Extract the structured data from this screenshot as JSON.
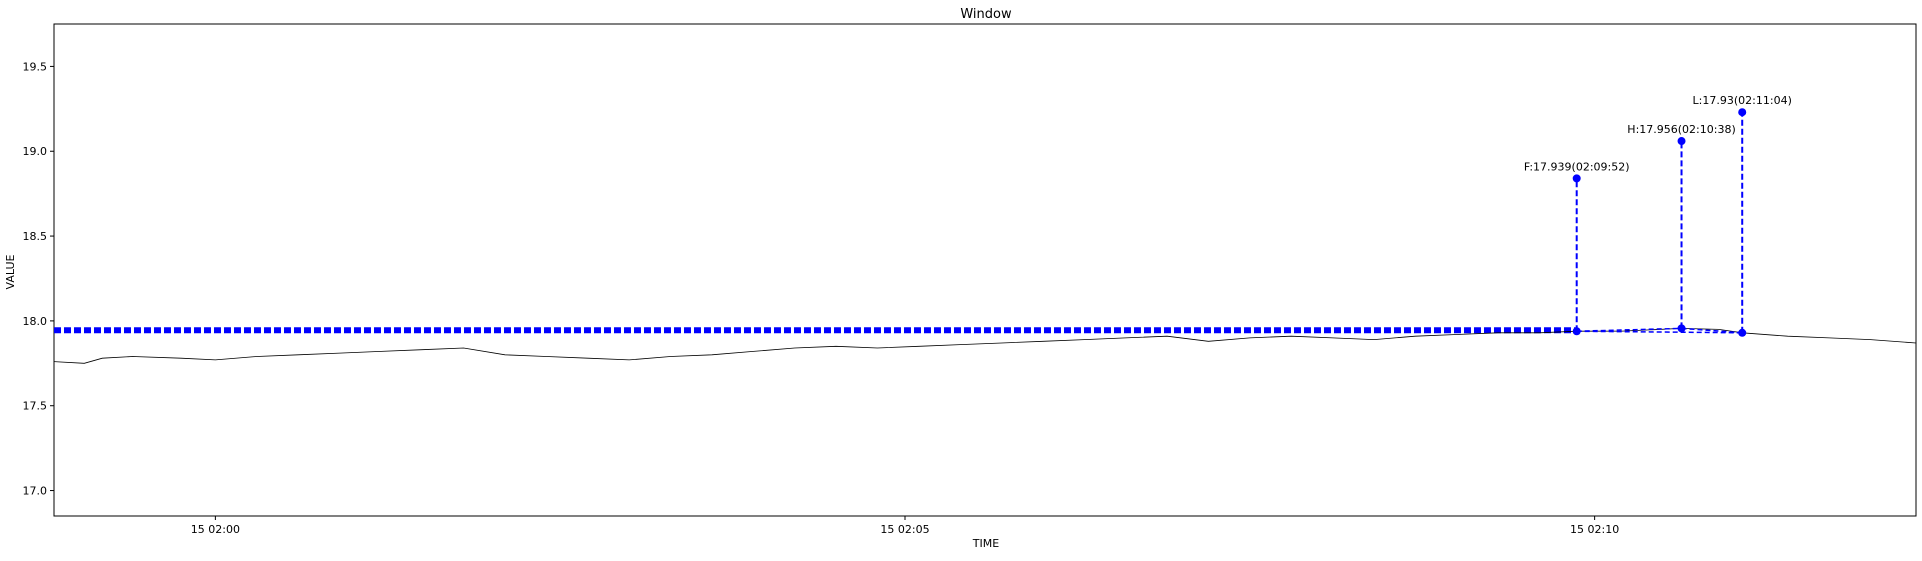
{
  "chart_data": {
    "type": "line",
    "title": "Window",
    "xlabel": "TIME",
    "ylabel": "VALUE",
    "ylim": [
      16.85,
      19.75
    ],
    "xlim_minutes": [
      -1.17,
      12.33
    ],
    "grid": false,
    "x_ticks": [
      {
        "value": 0,
        "label": "15 02:00"
      },
      {
        "value": 5,
        "label": "15 02:05"
      },
      {
        "value": 10,
        "label": "15 02:10"
      }
    ],
    "y_ticks": [
      {
        "value": 17.0,
        "label": "17.0"
      },
      {
        "value": 17.5,
        "label": "17.5"
      },
      {
        "value": 18.0,
        "label": "18.0"
      },
      {
        "value": 18.5,
        "label": "18.5"
      },
      {
        "value": 19.0,
        "label": "19.0"
      },
      {
        "value": 19.5,
        "label": "19.5"
      }
    ],
    "price_series": {
      "color": "#000000",
      "x": [
        -1.17,
        -0.95,
        -0.82,
        -0.6,
        -0.25,
        0.0,
        0.3,
        0.6,
        0.9,
        1.2,
        1.5,
        1.8,
        2.1,
        2.4,
        2.7,
        3.0,
        3.3,
        3.6,
        3.9,
        4.2,
        4.5,
        4.8,
        5.1,
        5.4,
        5.7,
        6.0,
        6.3,
        6.6,
        6.9,
        7.2,
        7.5,
        7.8,
        8.1,
        8.4,
        8.7,
        9.0,
        9.3,
        9.6,
        9.87,
        10.2,
        10.63,
        10.9,
        11.07,
        11.4,
        11.7,
        12.0,
        12.33
      ],
      "y": [
        17.76,
        17.75,
        17.78,
        17.79,
        17.78,
        17.77,
        17.79,
        17.8,
        17.81,
        17.82,
        17.83,
        17.84,
        17.8,
        17.79,
        17.78,
        17.77,
        17.79,
        17.8,
        17.82,
        17.84,
        17.85,
        17.84,
        17.85,
        17.86,
        17.87,
        17.88,
        17.89,
        17.9,
        17.91,
        17.88,
        17.9,
        17.91,
        17.9,
        17.89,
        17.91,
        17.92,
        17.93,
        17.93,
        17.939,
        17.94,
        17.956,
        17.95,
        17.93,
        17.91,
        17.9,
        17.89,
        17.87
      ]
    },
    "markers": [
      {
        "label": "F:17.939(02:09:52)",
        "x": 9.87,
        "y": 17.939,
        "top": 18.84
      },
      {
        "label": "H:17.956(02:10:38)",
        "x": 10.63,
        "y": 17.956,
        "top": 19.06
      },
      {
        "label": "L:17.93(02:11:04)",
        "x": 11.07,
        "y": 17.93,
        "top": 19.23
      }
    ],
    "reference_line": {
      "y": 17.945,
      "color": "#0000ff"
    },
    "marker_color": "#0000ff"
  }
}
